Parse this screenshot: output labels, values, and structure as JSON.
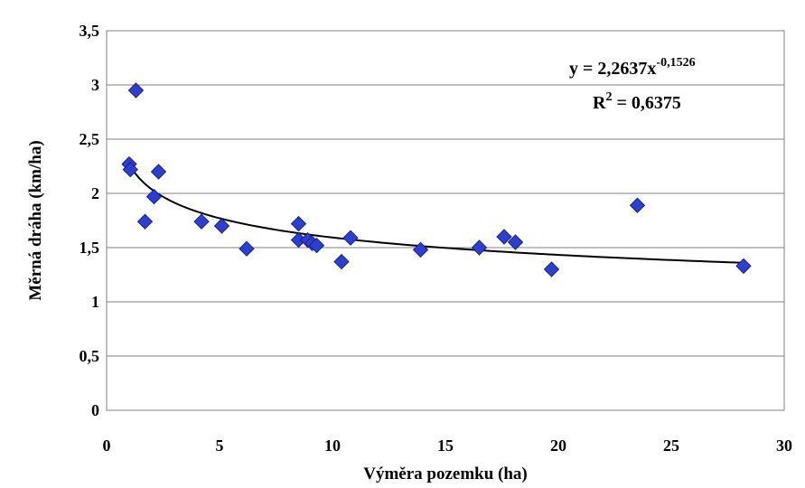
{
  "chart_data": {
    "type": "scatter",
    "title": "",
    "xlabel": "Výměra pozemku (ha)",
    "ylabel": "Měrná dráha (km/ha)",
    "xlim": [
      0,
      30
    ],
    "ylim": [
      0,
      3.5
    ],
    "x_ticks": [
      "0",
      "5",
      "10",
      "15",
      "20",
      "25",
      "30"
    ],
    "y_ticks": [
      "0",
      "0,5",
      "1",
      "1,5",
      "2",
      "2,5",
      "3",
      "3,5"
    ],
    "grid": "horizontal",
    "marker": "diamond",
    "marker_color": "#2E3FD0",
    "trendline": {
      "type": "power",
      "a": 2.2637,
      "b": -0.1526,
      "x_range": [
        1.0,
        28.2
      ],
      "color": "#000000",
      "equation_prefix": "y = 2,2637x",
      "equation_exponent": "-0,1526",
      "r2_prefix": "R",
      "r2_exponent": "2",
      "r2_suffix": " = 0,6375"
    },
    "points": [
      {
        "x": 1.0,
        "y": 2.27
      },
      {
        "x": 1.05,
        "y": 2.22
      },
      {
        "x": 1.3,
        "y": 2.95
      },
      {
        "x": 1.7,
        "y": 1.74
      },
      {
        "x": 2.1,
        "y": 1.97
      },
      {
        "x": 2.3,
        "y": 2.2
      },
      {
        "x": 4.2,
        "y": 1.74
      },
      {
        "x": 5.1,
        "y": 1.7
      },
      {
        "x": 6.2,
        "y": 1.49
      },
      {
        "x": 8.5,
        "y": 1.72
      },
      {
        "x": 8.5,
        "y": 1.57
      },
      {
        "x": 8.9,
        "y": 1.57
      },
      {
        "x": 9.1,
        "y": 1.54
      },
      {
        "x": 9.3,
        "y": 1.52
      },
      {
        "x": 10.4,
        "y": 1.37
      },
      {
        "x": 10.8,
        "y": 1.59
      },
      {
        "x": 13.9,
        "y": 1.48
      },
      {
        "x": 16.5,
        "y": 1.5
      },
      {
        "x": 17.6,
        "y": 1.6
      },
      {
        "x": 18.1,
        "y": 1.55
      },
      {
        "x": 19.7,
        "y": 1.3
      },
      {
        "x": 23.5,
        "y": 1.89
      },
      {
        "x": 28.2,
        "y": 1.33
      }
    ]
  }
}
